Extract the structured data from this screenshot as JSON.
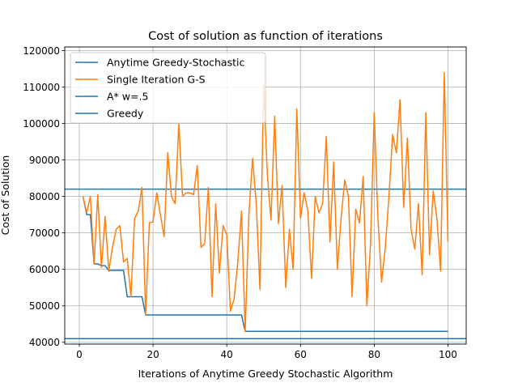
{
  "chart_data": {
    "type": "line",
    "title": "Cost of solution as function of iterations",
    "xlabel": "Iterations of Anytime Greedy Stochastic Algorithm",
    "ylabel": "Cost of Solution",
    "xlim": [
      -3.95,
      104.95
    ],
    "ylim": [
      39500,
      121000
    ],
    "xticks": [
      0,
      20,
      40,
      60,
      80,
      100
    ],
    "yticks": [
      40000,
      50000,
      60000,
      70000,
      80000,
      90000,
      100000,
      110000,
      120000
    ],
    "grid": true,
    "legend_position": "top-left",
    "series": [
      {
        "name": "Anytime Greedy-Stochastic",
        "color": "#1f77b4",
        "x": [
          1,
          2,
          3,
          4,
          5,
          6,
          7,
          8,
          9,
          10,
          11,
          12,
          13,
          14,
          15,
          16,
          17,
          18,
          19,
          20,
          21,
          22,
          23,
          24,
          25,
          26,
          27,
          28,
          29,
          30,
          31,
          32,
          33,
          34,
          35,
          36,
          37,
          38,
          39,
          40,
          41,
          42,
          43,
          44,
          45,
          46,
          47,
          48,
          49,
          50,
          51,
          52,
          53,
          54,
          55,
          56,
          57,
          58,
          59,
          60,
          61,
          62,
          63,
          64,
          65,
          66,
          67,
          68,
          69,
          70,
          71,
          72,
          73,
          74,
          75,
          76,
          77,
          78,
          79,
          80,
          81,
          82,
          83,
          84,
          85,
          86,
          87,
          88,
          89,
          90,
          91,
          92,
          93,
          94,
          95,
          96,
          97,
          98,
          99,
          100
        ],
        "y": [
          80000,
          75000,
          75000,
          61500,
          61500,
          61000,
          61000,
          59700,
          59700,
          59700,
          59700,
          59700,
          52500,
          52500,
          52500,
          52500,
          52500,
          47500,
          47500,
          47500,
          47500,
          47500,
          47500,
          47500,
          47500,
          47500,
          47500,
          47500,
          47500,
          47500,
          47500,
          47500,
          47500,
          47500,
          47500,
          47500,
          47500,
          47500,
          47500,
          47500,
          47500,
          47500,
          47500,
          47500,
          43000,
          43000,
          43000,
          43000,
          43000,
          43000,
          43000,
          43000,
          43000,
          43000,
          43000,
          43000,
          43000,
          43000,
          43000,
          43000,
          43000,
          43000,
          43000,
          43000,
          43000,
          43000,
          43000,
          43000,
          43000,
          43000,
          43000,
          43000,
          43000,
          43000,
          43000,
          43000,
          43000,
          43000,
          43000,
          43000,
          43000,
          43000,
          43000,
          43000,
          43000,
          43000,
          43000,
          43000,
          43000,
          43000,
          43000,
          43000,
          43000,
          43000,
          43000,
          43000,
          43000,
          43000,
          43000,
          43000
        ]
      },
      {
        "name": "Single Iteration G-S",
        "color": "#ff7f0e",
        "x": [
          1,
          2,
          3,
          4,
          5,
          6,
          7,
          8,
          9,
          10,
          11,
          12,
          13,
          14,
          15,
          16,
          17,
          18,
          19,
          20,
          21,
          22,
          23,
          24,
          25,
          26,
          27,
          28,
          29,
          30,
          31,
          32,
          33,
          34,
          35,
          36,
          37,
          38,
          39,
          40,
          41,
          42,
          43,
          44,
          45,
          46,
          47,
          48,
          49,
          50,
          51,
          52,
          53,
          54,
          55,
          56,
          57,
          58,
          59,
          60,
          61,
          62,
          63,
          64,
          65,
          66,
          67,
          68,
          69,
          70,
          71,
          72,
          73,
          74,
          75,
          76,
          77,
          78,
          79,
          80,
          81,
          82,
          83,
          84,
          85,
          86,
          87,
          88,
          89,
          90,
          91,
          92,
          93,
          94,
          95,
          96,
          97,
          98,
          99,
          100
        ],
        "y": [
          80000,
          75500,
          80000,
          61500,
          80500,
          60500,
          74500,
          59500,
          66000,
          71000,
          72000,
          62000,
          63000,
          52500,
          74000,
          76000,
          82500,
          47500,
          72800,
          73000,
          81000,
          75000,
          69000,
          92000,
          80000,
          78000,
          100000,
          80000,
          81000,
          81000,
          80500,
          88500,
          66000,
          67000,
          82500,
          52500,
          78000,
          59000,
          72000,
          69500,
          48500,
          52000,
          62000,
          76000,
          43000,
          75000,
          90500,
          78000,
          54500,
          111000,
          86000,
          73500,
          102000,
          72500,
          83000,
          55000,
          71000,
          60000,
          104000,
          74000,
          81000,
          76000,
          57500,
          80000,
          75500,
          78000,
          96500,
          67500,
          89500,
          60000,
          74000,
          84500,
          80000,
          52500,
          76500,
          72700,
          85500,
          50000,
          67000,
          103000,
          74000,
          56500,
          66000,
          80000,
          97000,
          92000,
          106500,
          77000,
          96000,
          71000,
          65500,
          78000,
          58500,
          103000,
          64000,
          81500,
          74000,
          59500,
          114000,
          67500
        ]
      },
      {
        "name": "A* w=.5",
        "color": "#1f77b4",
        "x": [
          -3.95,
          104.95
        ],
        "y": [
          82000,
          82000
        ]
      },
      {
        "name": "Greedy",
        "color": "#1f77b4",
        "x": [
          -3.95,
          104.95
        ],
        "y": [
          41000,
          41000
        ]
      }
    ]
  }
}
